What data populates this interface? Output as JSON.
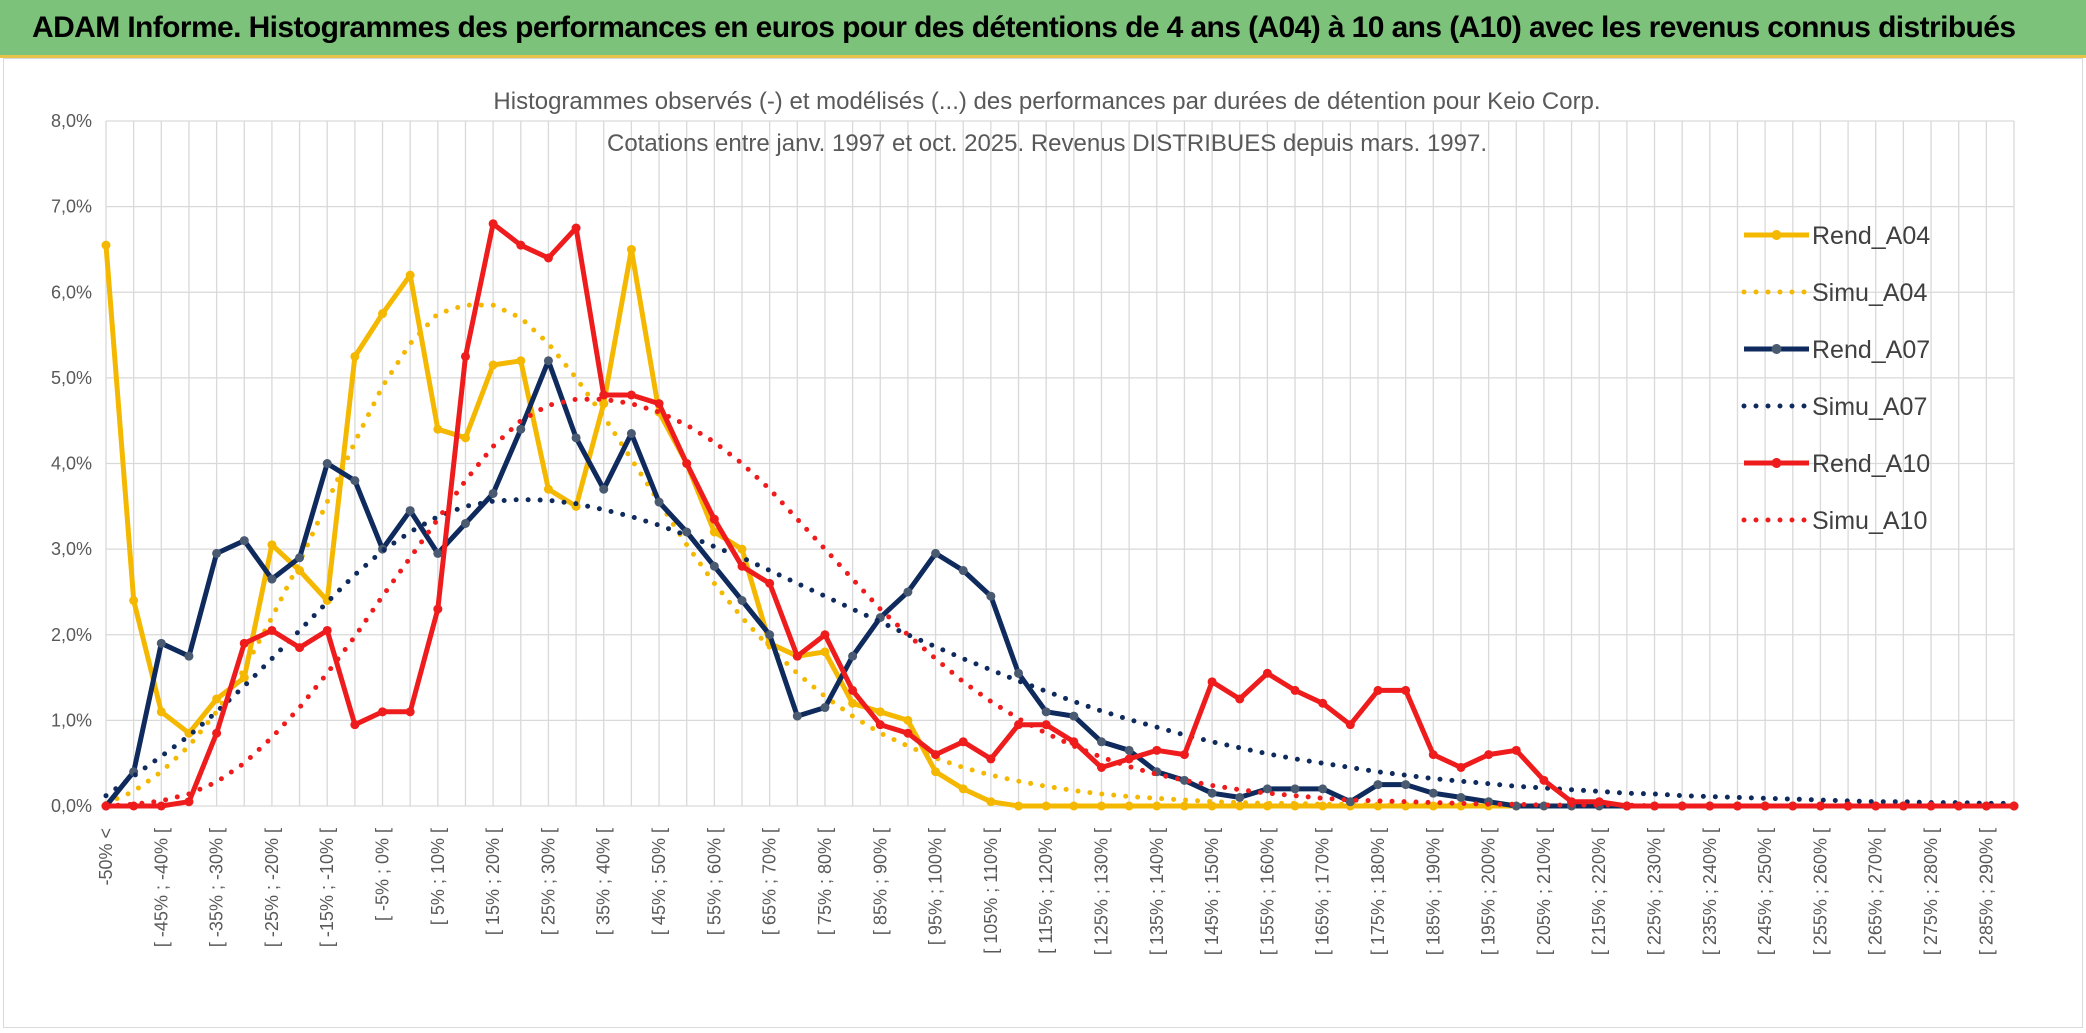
{
  "page": {
    "title": "ADAM Informe. Histogrammes des performances en euros pour des détentions de 4 ans (A04) à 10 ans (A10) avec les revenus connus distribués"
  },
  "chart_data": {
    "type": "line",
    "title": "Histogrammes observés (-) et modélisés (...) des performances par durées de détention pour Keio Corp.",
    "subtitle": "Cotations entre janv. 1997 et oct. 2025. Revenus DISTRIBUES depuis mars. 1997.",
    "xlabel": "",
    "ylabel": "",
    "ylim": [
      0,
      8
    ],
    "y_ticks": [
      "0,0%",
      "1,0%",
      "2,0%",
      "3,0%",
      "4,0%",
      "5,0%",
      "6,0%",
      "7,0%",
      "8,0%"
    ],
    "grid": true,
    "legend_position": "right",
    "x_tick_labels": [
      "-50% <",
      "[ -45% ; -40% [",
      "[ -35% ; -30% [",
      "[ -25% ; -20% [",
      "[ -15% ; -10% [",
      "[ -5% ; 0% [",
      "[ 5% ; 10% [",
      "[ 15% ; 20% [",
      "[ 25% ; 30% [",
      "[ 35% ; 40% [",
      "[ 45% ; 50% [",
      "[ 55% ; 60% [",
      "[ 65% ; 70% [",
      "[ 75% ; 80% [",
      "[ 85% ; 90% [",
      "[ 95% ; 100% [",
      "[ 105% ; 110% [",
      "[ 115% ; 120% [",
      "[ 125% ; 130% [",
      "[ 135% ; 140% [",
      "[ 145% ; 150% [",
      "[ 155% ; 160% [",
      "[ 165% ; 170% [",
      "[ 175% ; 180% [",
      "[ 185% ; 190% [",
      "[ 195% ; 200% [",
      "[ 205% ; 210% [",
      "[ 215% ; 220% [",
      "[ 225% ; 230% [",
      "[ 235% ; 240% [",
      "[ 245% ; 250% [",
      "[ 255% ; 260% [",
      "[ 265% ; 270% [",
      "[ 275% ; 280% [",
      "[ 285% ; 290% ["
    ],
    "x_count": 70,
    "series": [
      {
        "name": "Rend_A04",
        "color": "#f5b800",
        "style": "solid",
        "values": [
          6.55,
          2.4,
          1.1,
          0.85,
          1.25,
          1.5,
          3.05,
          2.75,
          2.4,
          5.25,
          5.75,
          6.2,
          4.4,
          4.3,
          5.15,
          5.2,
          3.7,
          3.5,
          4.7,
          6.5,
          4.6,
          4.0,
          3.2,
          3.0,
          1.9,
          1.75,
          1.8,
          1.2,
          1.1,
          1.0,
          0.4,
          0.2,
          0.05,
          0.0,
          0.0,
          0.0,
          0.0,
          0.0,
          0.0,
          0.0,
          0.0,
          0.0,
          0.0,
          0.0,
          0.0,
          0.0,
          0.0,
          0.0,
          0.0,
          0.0,
          0.0,
          0.0,
          0.0,
          0.0,
          0.0,
          0.0,
          0.0,
          0.0,
          0.0,
          0.0,
          0.0,
          0.0,
          0.0,
          0.0,
          0.0,
          0.0,
          0.0,
          0.0,
          0.0,
          0.0
        ]
      },
      {
        "name": "Simu_A04",
        "color": "#f5b800",
        "style": "dotted",
        "values": [
          0.03,
          0.17,
          0.4,
          0.7,
          1.1,
          1.6,
          2.2,
          2.85,
          3.55,
          4.25,
          4.9,
          5.4,
          5.75,
          5.85,
          5.85,
          5.7,
          5.4,
          5.0,
          4.55,
          4.05,
          3.55,
          3.05,
          2.6,
          2.2,
          1.85,
          1.55,
          1.28,
          1.05,
          0.85,
          0.7,
          0.56,
          0.45,
          0.36,
          0.29,
          0.23,
          0.18,
          0.14,
          0.11,
          0.09,
          0.07,
          0.05,
          0.04,
          0.03,
          0.03,
          0.02,
          0.02,
          0.01,
          0.01,
          0.01,
          0.01,
          0.01,
          0.0,
          0.0,
          0.0,
          0.0,
          0.0,
          0.0,
          0.0,
          0.0,
          0.0,
          0.0,
          0.0,
          0.0,
          0.0,
          0.0,
          0.0,
          0.0,
          0.0,
          0.0,
          0.0
        ]
      },
      {
        "name": "Rend_A07",
        "color": "#0f2a5c",
        "style": "solid",
        "values": [
          0.0,
          0.4,
          1.9,
          1.75,
          2.95,
          3.1,
          2.65,
          2.9,
          4.0,
          3.8,
          3.0,
          3.45,
          2.95,
          3.3,
          3.65,
          4.4,
          5.2,
          4.3,
          3.7,
          4.35,
          3.55,
          3.2,
          2.8,
          2.4,
          2.0,
          1.05,
          1.15,
          1.75,
          2.2,
          2.5,
          2.95,
          2.75,
          2.45,
          1.55,
          1.1,
          1.05,
          0.75,
          0.65,
          0.4,
          0.3,
          0.15,
          0.1,
          0.2,
          0.2,
          0.2,
          0.05,
          0.25,
          0.25,
          0.15,
          0.1,
          0.05,
          0.0,
          0.0,
          0.0,
          0.0,
          0.0,
          0.0,
          0.0,
          0.0,
          0.0,
          0.0,
          0.0,
          0.0,
          0.0,
          0.0,
          0.0,
          0.0,
          0.0,
          0.0,
          0.0
        ]
      },
      {
        "name": "Simu_A07",
        "color": "#0f2a5c",
        "style": "dotted",
        "values": [
          0.12,
          0.35,
          0.58,
          0.82,
          1.1,
          1.4,
          1.72,
          2.05,
          2.38,
          2.7,
          2.98,
          3.2,
          3.38,
          3.5,
          3.56,
          3.58,
          3.57,
          3.53,
          3.46,
          3.38,
          3.28,
          3.16,
          3.03,
          2.9,
          2.75,
          2.6,
          2.45,
          2.3,
          2.15,
          2.0,
          1.86,
          1.72,
          1.59,
          1.46,
          1.34,
          1.22,
          1.11,
          1.01,
          0.92,
          0.83,
          0.75,
          0.68,
          0.61,
          0.55,
          0.5,
          0.45,
          0.4,
          0.36,
          0.32,
          0.29,
          0.26,
          0.23,
          0.21,
          0.19,
          0.17,
          0.15,
          0.14,
          0.12,
          0.11,
          0.1,
          0.09,
          0.08,
          0.07,
          0.06,
          0.05,
          0.05,
          0.04,
          0.04,
          0.03,
          0.03
        ]
      },
      {
        "name": "Rend_A10",
        "color": "#ee1c1c",
        "style": "solid",
        "values": [
          0.0,
          0.0,
          0.0,
          0.05,
          0.85,
          1.9,
          2.05,
          1.85,
          2.05,
          0.95,
          1.1,
          1.1,
          2.3,
          5.25,
          6.8,
          6.55,
          6.4,
          6.75,
          4.8,
          4.8,
          4.7,
          4.0,
          3.35,
          2.8,
          2.6,
          1.75,
          2.0,
          1.35,
          0.95,
          0.85,
          0.6,
          0.75,
          0.55,
          0.95,
          0.95,
          0.75,
          0.45,
          0.55,
          0.65,
          0.6,
          1.45,
          1.25,
          1.55,
          1.35,
          1.2,
          0.95,
          1.35,
          1.35,
          0.6,
          0.45,
          0.6,
          0.65,
          0.3,
          0.05,
          0.05,
          0.0,
          0.0,
          0.0,
          0.0,
          0.0,
          0.0,
          0.0,
          0.0,
          0.0,
          0.0,
          0.0,
          0.0,
          0.0,
          0.0,
          0.0
        ]
      },
      {
        "name": "Simu_A10",
        "color": "#ee1c1c",
        "style": "dotted",
        "values": [
          0.0,
          0.02,
          0.06,
          0.14,
          0.28,
          0.5,
          0.8,
          1.15,
          1.55,
          1.98,
          2.45,
          2.9,
          3.35,
          3.8,
          4.2,
          4.5,
          4.68,
          4.75,
          4.75,
          4.7,
          4.6,
          4.45,
          4.25,
          4.0,
          3.7,
          3.35,
          3.0,
          2.65,
          2.3,
          2.0,
          1.72,
          1.45,
          1.22,
          1.02,
          0.85,
          0.7,
          0.57,
          0.46,
          0.37,
          0.3,
          0.24,
          0.19,
          0.15,
          0.12,
          0.09,
          0.07,
          0.06,
          0.05,
          0.04,
          0.03,
          0.02,
          0.02,
          0.01,
          0.01,
          0.01,
          0.01,
          0.0,
          0.0,
          0.0,
          0.0,
          0.0,
          0.0,
          0.0,
          0.0,
          0.0,
          0.0,
          0.0,
          0.0,
          0.0,
          0.0
        ]
      }
    ]
  }
}
